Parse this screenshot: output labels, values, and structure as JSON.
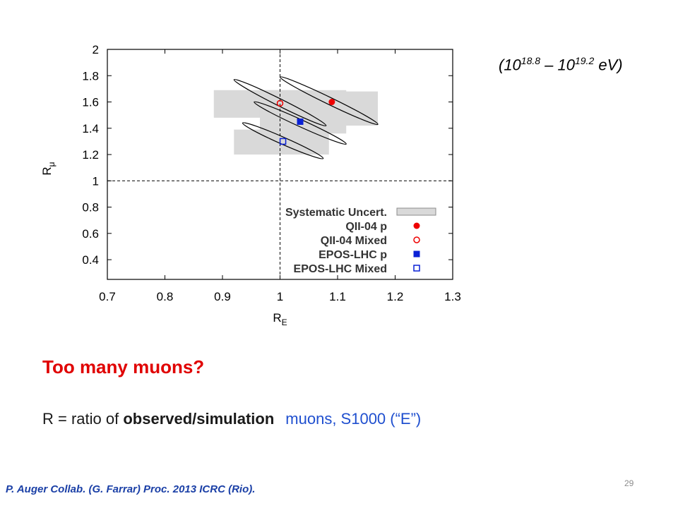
{
  "energy_label": {
    "open": "(10",
    "exp1": "18.8",
    "mid": " – 10",
    "exp2": "19.2",
    "close": " eV)"
  },
  "headline": "Too many muons?",
  "ratio_line": {
    "prefix": "R = ratio of ",
    "bold": "observed/simulation",
    "blue": "muons, S1000 (“E”)"
  },
  "citation": "P. Auger Collab. (G. Farrar) Proc. 2013 ICRC (Rio).",
  "page_number": "29",
  "colors": {
    "red": "#ee0000",
    "blue": "#0a21d6",
    "systematic_box": "#d9d9d9",
    "headline": "#e00000"
  },
  "chart_data": {
    "type": "scatter",
    "xlabel": "R",
    "xlabel_sub": "E",
    "ylabel": "R",
    "ylabel_sub": "μ",
    "xlim": [
      0.7,
      1.3
    ],
    "ylim": [
      0.25,
      2.0
    ],
    "xticks": [
      "0.7",
      "0.8",
      "0.9",
      "1",
      "1.1",
      "1.2",
      "1.3"
    ],
    "yticks": [
      "0.4",
      "0.6",
      "0.8",
      "1",
      "1.2",
      "1.4",
      "1.6",
      "1.8",
      "2"
    ],
    "reference_lines": {
      "x": 1.0,
      "y": 1.0,
      "style": "dashed"
    },
    "series": [
      {
        "name": "QII-04 p",
        "marker": "filled-circle",
        "color": "#ee0000",
        "x": 1.09,
        "y": 1.6,
        "systematic": {
          "x": [
            1.0,
            1.17
          ],
          "y": [
            1.42,
            1.68
          ]
        },
        "ellipse": {
          "from": [
            1.0,
            1.79
          ],
          "to": [
            1.17,
            1.43
          ]
        }
      },
      {
        "name": "QII-04 Mixed",
        "marker": "open-circle",
        "color": "#ee0000",
        "x": 1.0,
        "y": 1.59,
        "systematic": {
          "x": [
            0.885,
            1.055
          ],
          "y": [
            1.48,
            1.69
          ]
        },
        "ellipse": {
          "from": [
            0.92,
            1.77
          ],
          "to": [
            1.08,
            1.42
          ]
        }
      },
      {
        "name": "EPOS-LHC p",
        "marker": "filled-square",
        "color": "#0a21d6",
        "x": 1.035,
        "y": 1.45,
        "systematic": {
          "x": [
            0.965,
            1.115
          ],
          "y": [
            1.36,
            1.69
          ]
        },
        "ellipse": {
          "from": [
            0.955,
            1.6
          ],
          "to": [
            1.115,
            1.28
          ]
        }
      },
      {
        "name": "EPOS-LHC Mixed",
        "marker": "open-square",
        "color": "#0a21d6",
        "x": 1.005,
        "y": 1.3,
        "systematic": {
          "x": [
            0.92,
            1.085
          ],
          "y": [
            1.2,
            1.39
          ]
        },
        "ellipse": {
          "from": [
            0.935,
            1.44
          ],
          "to": [
            1.075,
            1.17
          ]
        }
      }
    ],
    "legend": {
      "position": "bottom-right",
      "entries": [
        "Systematic Uncert.",
        "QII-04 p",
        "QII-04 Mixed",
        "EPOS-LHC p",
        "EPOS-LHC Mixed"
      ]
    }
  }
}
